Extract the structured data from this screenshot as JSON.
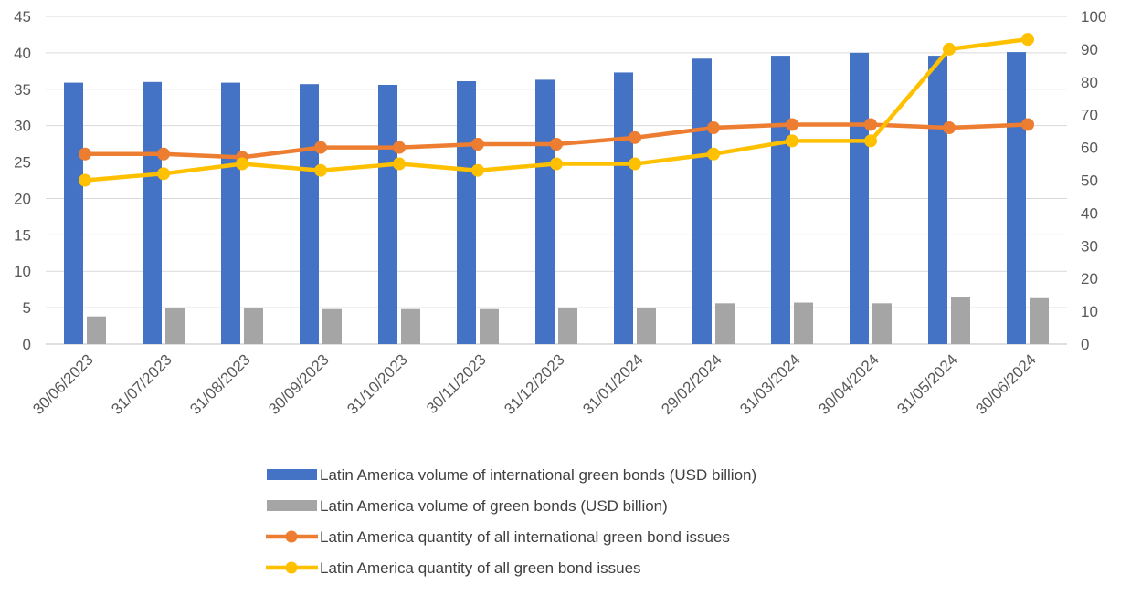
{
  "chart_data": {
    "type": "bar",
    "title": "",
    "xlabel": "",
    "ylabel": "",
    "ylim": [
      0,
      45
    ],
    "y2lim": [
      0,
      100
    ],
    "yticks": [
      0,
      5,
      10,
      15,
      20,
      25,
      30,
      35,
      40,
      45
    ],
    "y2ticks": [
      0,
      10,
      20,
      30,
      40,
      50,
      60,
      70,
      80,
      90,
      100
    ],
    "grid": true,
    "legend_position": "bottom",
    "categories": [
      "30/06/2023",
      "31/07/2023",
      "31/08/2023",
      "30/09/2023",
      "31/10/2023",
      "30/11/2023",
      "31/12/2023",
      "31/01/2024",
      "29/02/2024",
      "31/03/2024",
      "30/04/2024",
      "31/05/2024",
      "30/06/2024"
    ],
    "series": [
      {
        "name": "Latin America volume of international green bonds (USD billion)",
        "type": "bar",
        "axis": "left",
        "color": "#4472C4",
        "values": [
          35.9,
          36.0,
          35.9,
          35.7,
          35.6,
          36.1,
          36.3,
          37.3,
          39.2,
          39.6,
          40.0,
          39.6,
          40.1
        ]
      },
      {
        "name": "Latin America volume of  green bonds (USD billion)",
        "type": "bar",
        "axis": "left",
        "color": "#A5A5A5",
        "values": [
          3.8,
          4.9,
          5.0,
          4.8,
          4.8,
          4.8,
          5.0,
          4.9,
          5.6,
          5.7,
          5.6,
          6.5,
          6.3
        ]
      },
      {
        "name": "Latin America quantity of all international green bond issues",
        "type": "line",
        "axis": "right",
        "color": "#ED7D31",
        "values": [
          58,
          58,
          57,
          60,
          60,
          61,
          61,
          63,
          66,
          67,
          67,
          66,
          67
        ]
      },
      {
        "name": "Latin America quantity of all  green bond issues",
        "type": "line",
        "axis": "right",
        "color": "#FFC000",
        "values": [
          50,
          52,
          55,
          53,
          55,
          53,
          55,
          55,
          58,
          62,
          62,
          90,
          93
        ]
      }
    ]
  }
}
